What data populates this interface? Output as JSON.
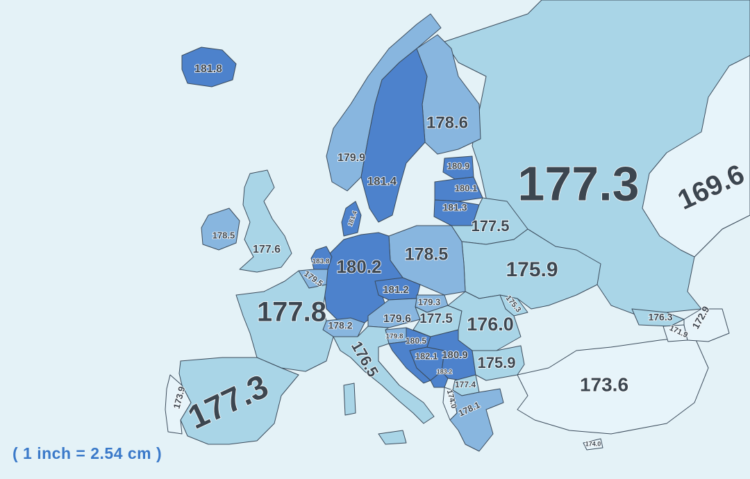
{
  "colors": {
    "sea": "#e4f2f7",
    "tier_lightest": "#e7f4fa",
    "tier_light": "#a9d5e7",
    "tier_mid": "#88b6df",
    "tier_dark": "#4d82cc",
    "label": "#3c4650",
    "scale_note": "#3a79c9"
  },
  "scale_note": "( 1 inch = 2.54 cm )",
  "regions": [
    {
      "id": "iceland",
      "value": "181.8",
      "tier": "tier_dark"
    },
    {
      "id": "norway",
      "value": "179.9",
      "tier": "tier_mid"
    },
    {
      "id": "sweden",
      "value": "181.4",
      "tier": "tier_dark"
    },
    {
      "id": "finland",
      "value": "178.6",
      "tier": "tier_mid"
    },
    {
      "id": "russia",
      "value": "177.3",
      "tier": "tier_light"
    },
    {
      "id": "kazakhstan",
      "value": "169.6",
      "tier": "tier_lightest"
    },
    {
      "id": "estonia",
      "value": "180.9",
      "tier": "tier_dark"
    },
    {
      "id": "latvia",
      "value": "180.1",
      "tier": "tier_dark"
    },
    {
      "id": "lithuania",
      "value": "181.3",
      "tier": "tier_dark"
    },
    {
      "id": "belarus",
      "value": "177.5",
      "tier": "tier_light"
    },
    {
      "id": "ireland",
      "value": "178.5",
      "tier": "tier_mid"
    },
    {
      "id": "uk",
      "value": "177.6",
      "tier": "tier_light"
    },
    {
      "id": "netherlands",
      "value": "183.8",
      "tier": "tier_dark"
    },
    {
      "id": "belgium",
      "value": "179.5",
      "tier": "tier_mid"
    },
    {
      "id": "germany",
      "value": "180.2",
      "tier": "tier_dark"
    },
    {
      "id": "poland",
      "value": "178.5",
      "tier": "tier_mid"
    },
    {
      "id": "ukraine",
      "value": "175.9",
      "tier": "tier_light"
    },
    {
      "id": "czech",
      "value": "181.2",
      "tier": "tier_dark"
    },
    {
      "id": "slovakia",
      "value": "179.3",
      "tier": "tier_mid"
    },
    {
      "id": "moldova",
      "value": "175.3",
      "tier": "tier_light"
    },
    {
      "id": "france",
      "value": "177.8",
      "tier": "tier_light"
    },
    {
      "id": "switzerland",
      "value": "178.2",
      "tier": "tier_mid"
    },
    {
      "id": "austria",
      "value": "179.6",
      "tier": "tier_mid"
    },
    {
      "id": "hungary",
      "value": "177.5",
      "tier": "tier_light"
    },
    {
      "id": "romania",
      "value": "176.0",
      "tier": "tier_light"
    },
    {
      "id": "slovenia",
      "value": "179.8",
      "tier": "tier_mid"
    },
    {
      "id": "croatia",
      "value": "180.5",
      "tier": "tier_dark"
    },
    {
      "id": "bosnia",
      "value": "182.1",
      "tier": "tier_dark"
    },
    {
      "id": "serbia",
      "value": "180.9",
      "tier": "tier_dark"
    },
    {
      "id": "montenegro",
      "value": "183.2",
      "tier": "tier_dark"
    },
    {
      "id": "bulgaria",
      "value": "175.9",
      "tier": "tier_light"
    },
    {
      "id": "north_macedonia",
      "value": "177.4",
      "tier": "tier_light"
    },
    {
      "id": "albania",
      "value": "174.0",
      "tier": "tier_lightest"
    },
    {
      "id": "greece",
      "value": "178.1",
      "tier": "tier_mid"
    },
    {
      "id": "italy",
      "value": "176.5",
      "tier": "tier_light"
    },
    {
      "id": "spain",
      "value": "177.3",
      "tier": "tier_light"
    },
    {
      "id": "portugal",
      "value": "173.9",
      "tier": "tier_lightest"
    },
    {
      "id": "turkey",
      "value": "173.6",
      "tier": "tier_lightest"
    },
    {
      "id": "georgia",
      "value": "176.3",
      "tier": "tier_light"
    },
    {
      "id": "armenia",
      "value": "171.9",
      "tier": "tier_lightest"
    },
    {
      "id": "azerbaijan",
      "value": "172.9",
      "tier": "tier_lightest"
    },
    {
      "id": "cyprus",
      "value": "174.0",
      "tier": "tier_lightest"
    },
    {
      "id": "denmark",
      "value": "181.4",
      "tier": "tier_dark"
    }
  ]
}
